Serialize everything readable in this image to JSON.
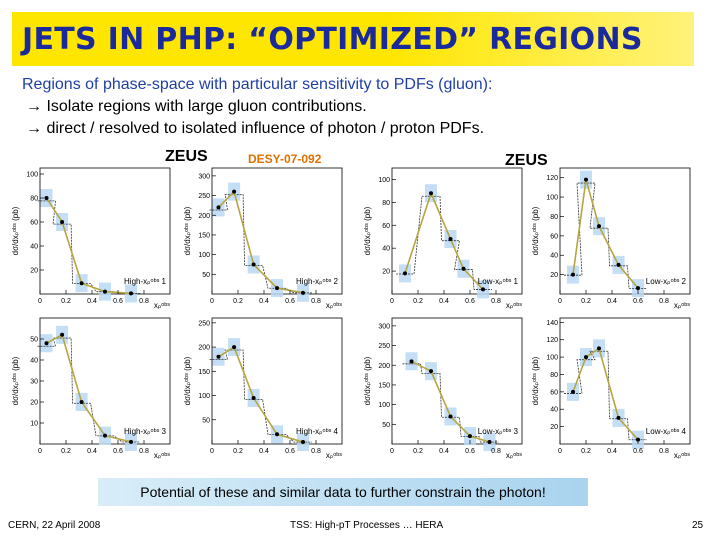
{
  "slide": {
    "title": "JETS IN PHP: “OPTIMIZED” REGIONS",
    "intro": "Regions of phase-space with particular sensitivity to PDFs (gluon):",
    "bullets": [
      "→ Isolate regions with large gluon contributions.",
      "→ direct / resolved to isolated influence of photon / proton PDFs."
    ],
    "footnote": "Potential of these and similar data to further constrain the photon!",
    "footer_left": "CERN, 22 April 2008",
    "footer_center": "TSS: High-pT Processes … HERA",
    "footer_right": "25"
  },
  "figure": {
    "label_left": "ZEUS",
    "label_desy": "DESY-07-092",
    "label_right": "ZEUS"
  },
  "chart_data": [
    {
      "type": "line",
      "ylabel": "dσ/dxₚᵒᵇˢ (pb)",
      "xlabel": "xₚᵒᵇˢ",
      "region": "High-xₚᵒᵇˢ 1",
      "xlim": [
        0,
        1
      ],
      "ylim": [
        0,
        105
      ],
      "xticks": [
        0,
        0.2,
        0.4,
        0.6,
        0.8
      ],
      "yticks": [
        20,
        40,
        60,
        80,
        100
      ],
      "x": [
        0.05,
        0.17,
        0.32,
        0.5,
        0.7
      ],
      "values": [
        80,
        60,
        9,
        2,
        0.5
      ]
    },
    {
      "type": "line",
      "ylabel": "dσ/dxₚᵒᵇˢ (pb)",
      "xlabel": "xₚᵒᵇˢ",
      "region": "High-xₚᵒᵇˢ 2",
      "xlim": [
        0,
        1
      ],
      "ylim": [
        0,
        320
      ],
      "xticks": [
        0,
        0.2,
        0.4,
        0.6,
        0.8
      ],
      "yticks": [
        50,
        100,
        150,
        200,
        250,
        300
      ],
      "x": [
        0.05,
        0.17,
        0.32,
        0.5,
        0.7
      ],
      "values": [
        220,
        260,
        75,
        15,
        3
      ]
    },
    {
      "type": "line",
      "ylabel": "dσ/dxₚᵒᵇˢ (pb)",
      "xlabel": "xₚᵒᵇˢ",
      "region": "Low-xₚᵒᵇˢ 1",
      "xlim": [
        0,
        1
      ],
      "ylim": [
        0,
        110
      ],
      "xticks": [
        0,
        0.2,
        0.4,
        0.6,
        0.8
      ],
      "yticks": [
        20,
        40,
        60,
        80,
        100
      ],
      "x": [
        0.1,
        0.3,
        0.45,
        0.55,
        0.7
      ],
      "values": [
        18,
        88,
        48,
        22,
        4
      ]
    },
    {
      "type": "line",
      "ylabel": "dσ/dxₚᵒᵇˢ (pb)",
      "xlabel": "xₚᵒᵇˢ",
      "region": "Low-xₚᵒᵇˢ 2",
      "xlim": [
        0,
        1
      ],
      "ylim": [
        0,
        130
      ],
      "xticks": [
        0,
        0.2,
        0.4,
        0.6,
        0.8
      ],
      "yticks": [
        20,
        40,
        60,
        80,
        100,
        120
      ],
      "x": [
        0.1,
        0.2,
        0.3,
        0.45,
        0.6
      ],
      "values": [
        20,
        118,
        70,
        30,
        6
      ]
    },
    {
      "type": "line",
      "ylabel": "dσ/dxₚᵒᵇˢ (pb)",
      "xlabel": "xₚᵒᵇˢ",
      "region": "High-xₚᵒᵇˢ 3",
      "xlim": [
        0,
        1
      ],
      "ylim": [
        0,
        60
      ],
      "xticks": [
        0,
        0.2,
        0.4,
        0.6,
        0.8
      ],
      "yticks": [
        10,
        20,
        30,
        40,
        50
      ],
      "x": [
        0.05,
        0.17,
        0.32,
        0.5,
        0.7
      ],
      "values": [
        48,
        52,
        20,
        4,
        1
      ]
    },
    {
      "type": "line",
      "ylabel": "dσ/dxₚᵒᵇˢ (pb)",
      "xlabel": "xₚᵒᵇˢ",
      "region": "High-xₚᵒᵇˢ 4",
      "xlim": [
        0,
        1
      ],
      "ylim": [
        0,
        260
      ],
      "xticks": [
        0,
        0.2,
        0.4,
        0.6,
        0.8
      ],
      "yticks": [
        50,
        100,
        150,
        200,
        250
      ],
      "x": [
        0.05,
        0.17,
        0.32,
        0.5,
        0.7
      ],
      "values": [
        180,
        200,
        95,
        20,
        4
      ]
    },
    {
      "type": "line",
      "ylabel": "dσ/dxₚᵒᵇˢ (pb)",
      "xlabel": "xₚᵒᵇˢ",
      "region": "Low-xₚᵒᵇˢ 3",
      "xlim": [
        0,
        1
      ],
      "ylim": [
        0,
        320
      ],
      "xticks": [
        0,
        0.2,
        0.4,
        0.6,
        0.8
      ],
      "yticks": [
        50,
        100,
        150,
        200,
        250,
        300
      ],
      "x": [
        0.15,
        0.3,
        0.45,
        0.6,
        0.75
      ],
      "values": [
        210,
        185,
        70,
        20,
        5
      ]
    },
    {
      "type": "line",
      "ylabel": "dσ/dxₚᵒᵇˢ (pb)",
      "xlabel": "xₚᵒᵇˢ",
      "region": "Low-xₚᵒᵇˢ 4",
      "xlim": [
        0,
        1
      ],
      "ylim": [
        0,
        145
      ],
      "xticks": [
        0,
        0.2,
        0.4,
        0.6,
        0.8
      ],
      "yticks": [
        20,
        40,
        60,
        80,
        100,
        120,
        140
      ],
      "x": [
        0.1,
        0.2,
        0.3,
        0.45,
        0.6
      ],
      "values": [
        60,
        100,
        110,
        30,
        5
      ]
    }
  ]
}
